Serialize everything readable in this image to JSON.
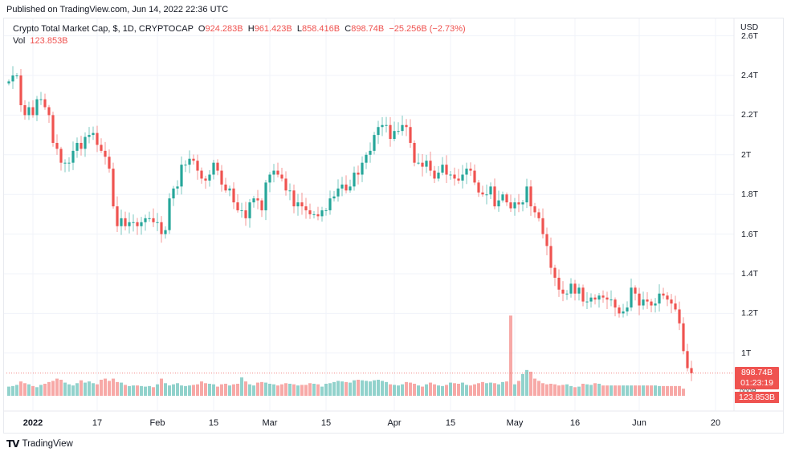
{
  "header": {
    "published": "Published on TradingView.com, Jun 14, 2022 22:36 UTC"
  },
  "legend": {
    "symbol": "Crypto Total Market Cap, $, 1D, CRYPTOCAP",
    "open_label": "O",
    "open": "924.283B",
    "high_label": "H",
    "high": "961.423B",
    "low_label": "L",
    "low": "858.416B",
    "close_label": "C",
    "close": "898.74B",
    "change": "−25.256B (−2.73%)",
    "vol_label": "Vol",
    "vol": "123.853B"
  },
  "price_axis": {
    "currency": "USD",
    "last_price": "898.74B",
    "countdown": "01:23:19",
    "hidden_label": "000B",
    "last_volume": "123.853B"
  },
  "footer": {
    "brand": "TradingView",
    "logo": "TV"
  },
  "colors": {
    "up": "#26a69a",
    "down": "#ef5350",
    "grid": "#f0f3fa"
  },
  "chart_data": {
    "type": "candlestick",
    "title": "Crypto Total Market Cap, $, 1D, CRYPTOCAP",
    "start_date": "2021-12-26",
    "interval": "1D",
    "unit": "T USD",
    "ylim": [
      0.8,
      2.62
    ],
    "y_ticks": [
      {
        "label": "2.6T",
        "value": 2.6
      },
      {
        "label": "2.4T",
        "value": 2.4
      },
      {
        "label": "2.2T",
        "value": 2.2
      },
      {
        "label": "2T",
        "value": 2.0
      },
      {
        "label": "1.8T",
        "value": 1.8
      },
      {
        "label": "1.6T",
        "value": 1.6
      },
      {
        "label": "1.4T",
        "value": 1.4
      },
      {
        "label": "1.2T",
        "value": 1.2
      },
      {
        "label": "1T",
        "value": 1.0
      }
    ],
    "x_ticks": [
      {
        "label": "2022",
        "day": 6,
        "bold": true
      },
      {
        "label": "17",
        "day": 22
      },
      {
        "label": "Feb",
        "day": 37
      },
      {
        "label": "15",
        "day": 51
      },
      {
        "label": "Mar",
        "day": 65
      },
      {
        "label": "15",
        "day": 79
      },
      {
        "label": "Apr",
        "day": 96
      },
      {
        "label": "15",
        "day": 110
      },
      {
        "label": "May",
        "day": 126
      },
      {
        "label": "16",
        "day": 141
      },
      {
        "label": "Jun",
        "day": 157
      },
      {
        "label": "20",
        "day": 176
      }
    ],
    "first_open": 2.36,
    "closes": [
      2.37,
      2.4,
      2.4,
      2.25,
      2.2,
      2.24,
      2.2,
      2.28,
      2.28,
      2.24,
      2.2,
      2.06,
      2.03,
      1.96,
      1.96,
      1.96,
      2.02,
      2.06,
      2.03,
      2.09,
      2.1,
      2.11,
      2.05,
      2.02,
      1.99,
      1.93,
      1.74,
      1.64,
      1.68,
      1.64,
      1.66,
      1.66,
      1.64,
      1.66,
      1.68,
      1.68,
      1.66,
      1.66,
      1.6,
      1.62,
      1.78,
      1.83,
      1.84,
      1.95,
      1.95,
      1.98,
      1.97,
      1.92,
      1.88,
      1.87,
      1.9,
      1.96,
      1.92,
      1.85,
      1.82,
      1.83,
      1.76,
      1.72,
      1.72,
      1.68,
      1.76,
      1.78,
      1.77,
      1.72,
      1.86,
      1.9,
      1.92,
      1.9,
      1.88,
      1.82,
      1.82,
      1.74,
      1.76,
      1.74,
      1.72,
      1.7,
      1.7,
      1.69,
      1.72,
      1.72,
      1.78,
      1.79,
      1.83,
      1.85,
      1.82,
      1.84,
      1.91,
      1.9,
      1.96,
      2.0,
      2.02,
      2.1,
      2.14,
      2.15,
      2.15,
      2.08,
      2.12,
      2.12,
      2.15,
      2.14,
      2.06,
      1.96,
      1.96,
      1.94,
      1.97,
      1.92,
      1.88,
      1.91,
      1.95,
      1.9,
      1.9,
      1.88,
      1.87,
      1.9,
      1.93,
      1.92,
      1.86,
      1.81,
      1.8,
      1.8,
      1.84,
      1.74,
      1.77,
      1.8,
      1.76,
      1.73,
      1.76,
      1.75,
      1.76,
      1.84,
      1.74,
      1.71,
      1.68,
      1.6,
      1.54,
      1.43,
      1.38,
      1.32,
      1.3,
      1.3,
      1.35,
      1.3,
      1.33,
      1.26,
      1.26,
      1.28,
      1.27,
      1.29,
      1.28,
      1.27,
      1.27,
      1.23,
      1.2,
      1.21,
      1.23,
      1.33,
      1.3,
      1.24,
      1.27,
      1.26,
      1.24,
      1.25,
      1.3,
      1.29,
      1.27,
      1.25,
      1.22,
      1.15,
      1.01,
      0.924,
      0.899
    ],
    "last_candle": {
      "open": 0.924283,
      "high": 0.961423,
      "low": 0.858416,
      "close": 0.89874
    },
    "volume_max_B": 1400,
    "volumes_B": [
      160,
      170,
      190,
      250,
      220,
      200,
      170,
      150,
      190,
      210,
      240,
      260,
      300,
      280,
      230,
      200,
      180,
      220,
      270,
      230,
      250,
      220,
      200,
      280,
      300,
      260,
      300,
      240,
      230,
      190,
      170,
      180,
      180,
      170,
      160,
      170,
      150,
      200,
      300,
      220,
      180,
      200,
      220,
      180,
      170,
      180,
      190,
      200,
      250,
      220,
      210,
      200,
      160,
      200,
      210,
      180,
      200,
      210,
      320,
      250,
      200,
      180,
      230,
      240,
      230,
      210,
      200,
      180,
      200,
      220,
      210,
      200,
      180,
      190,
      190,
      220,
      210,
      200,
      160,
      210,
      220,
      240,
      260,
      250,
      240,
      230,
      270,
      280,
      270,
      260,
      250,
      270,
      280,
      260,
      240,
      200,
      190,
      180,
      200,
      240,
      230,
      210,
      180,
      160,
      200,
      230,
      200,
      180,
      170,
      190,
      230,
      220,
      210,
      230,
      190,
      180,
      200,
      220,
      240,
      220,
      230,
      220,
      200,
      240,
      250,
      1400,
      200,
      260,
      380,
      450,
      420,
      300,
      260,
      220,
      200,
      210,
      200,
      180,
      190,
      200,
      170,
      150,
      160,
      210,
      200,
      190,
      220,
      210,
      180,
      180,
      180,
      180,
      180,
      180,
      180,
      180,
      180,
      180,
      180,
      180,
      180,
      180,
      170,
      170,
      170,
      170,
      170,
      170,
      124
    ]
  }
}
